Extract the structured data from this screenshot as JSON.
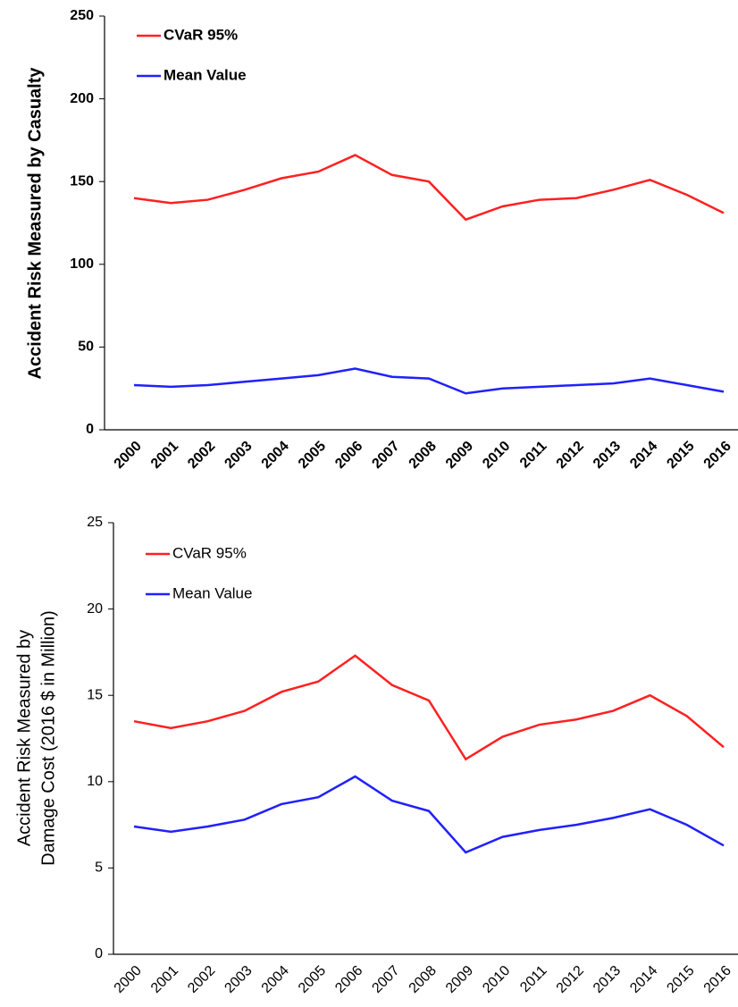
{
  "chart_data": [
    {
      "type": "line",
      "bold": true,
      "ylabel": [
        "Accident Risk Measured by Casualty"
      ],
      "categories": [
        "2000",
        "2001",
        "2002",
        "2003",
        "2004",
        "2005",
        "2006",
        "2007",
        "2008",
        "2009",
        "2010",
        "2011",
        "2012",
        "2013",
        "2014",
        "2015",
        "2016"
      ],
      "series": [
        {
          "name": "CVaR 95%",
          "color": "#ff2020",
          "values": [
            140,
            137,
            139,
            145,
            152,
            156,
            166,
            154,
            150,
            127,
            135,
            139,
            140,
            145,
            151,
            142,
            131
          ]
        },
        {
          "name": "Mean Value",
          "color": "#2020ff",
          "values": [
            27,
            26,
            27,
            29,
            31,
            33,
            37,
            32,
            31,
            22,
            25,
            26,
            27,
            28,
            31,
            27,
            23
          ]
        }
      ],
      "ylim": [
        0,
        250
      ],
      "yticks": [
        0,
        50,
        100,
        150,
        200,
        250
      ],
      "grid": false,
      "legend": "upper left"
    },
    {
      "type": "line",
      "bold": false,
      "ylabel": [
        "Accident Risk Measured by",
        "Damage Cost (2016 $ in Million)"
      ],
      "categories": [
        "2000",
        "2001",
        "2002",
        "2003",
        "2004",
        "2005",
        "2006",
        "2007",
        "2008",
        "2009",
        "2010",
        "2011",
        "2012",
        "2013",
        "2014",
        "2015",
        "2016"
      ],
      "series": [
        {
          "name": "CVaR 95%",
          "color": "#ff2020",
          "values": [
            13.5,
            13.1,
            13.5,
            14.1,
            15.2,
            15.8,
            17.3,
            15.6,
            14.7,
            11.3,
            12.6,
            13.3,
            13.6,
            14.1,
            15.0,
            13.8,
            12.0
          ]
        },
        {
          "name": "Mean Value",
          "color": "#2020ff",
          "values": [
            7.4,
            7.1,
            7.4,
            7.8,
            8.7,
            9.1,
            10.3,
            8.9,
            8.3,
            5.9,
            6.8,
            7.2,
            7.5,
            7.9,
            8.4,
            7.5,
            6.3
          ]
        }
      ],
      "ylim": [
        0,
        25
      ],
      "yticks": [
        0,
        5,
        10,
        15,
        20,
        25
      ],
      "grid": false,
      "legend": "upper left"
    }
  ]
}
